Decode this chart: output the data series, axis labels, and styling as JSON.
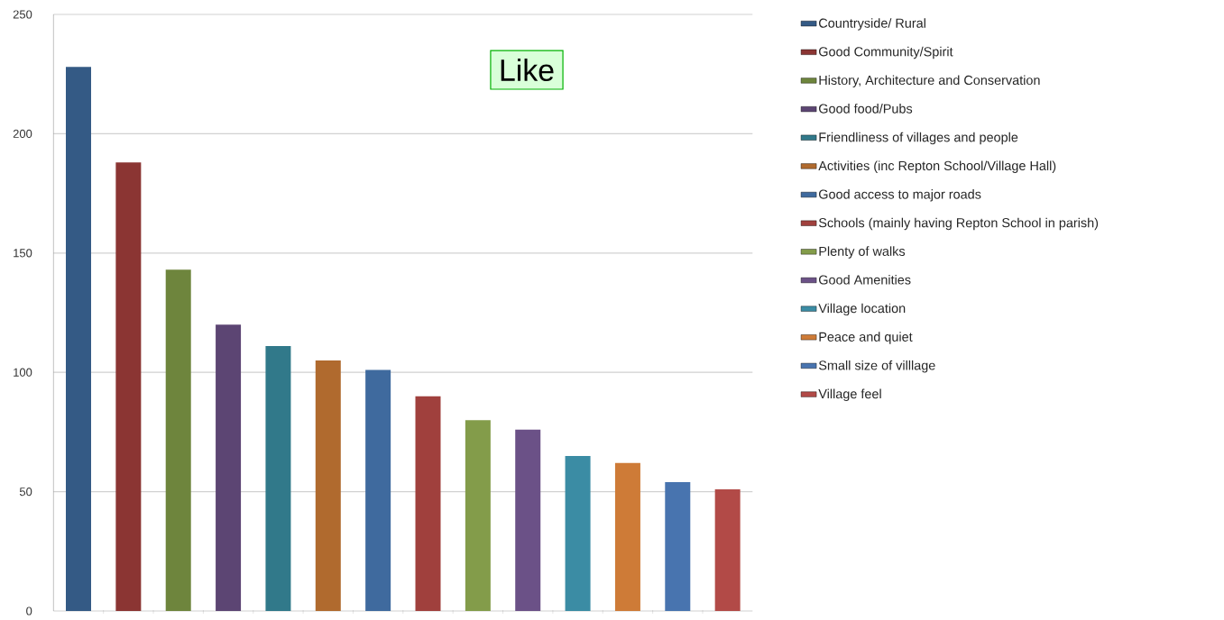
{
  "chart_data": {
    "type": "bar",
    "categories": [
      null,
      null,
      null,
      null,
      null,
      null,
      null,
      null,
      null,
      null,
      null,
      null,
      null,
      null
    ],
    "series": [
      {
        "name": "Countryside/ Rural",
        "color": "#345a85",
        "values": [
          228,
          null,
          null,
          null,
          null,
          null,
          null,
          null,
          null,
          null,
          null,
          null,
          null,
          null
        ]
      },
      {
        "name": "Good Community/Spirit",
        "color": "#8b3533",
        "values": [
          null,
          188,
          null,
          null,
          null,
          null,
          null,
          null,
          null,
          null,
          null,
          null,
          null,
          null
        ]
      },
      {
        "name": "History, Architecture and Conservation",
        "color": "#6e853d",
        "values": [
          null,
          null,
          143,
          null,
          null,
          null,
          null,
          null,
          null,
          null,
          null,
          null,
          null,
          null
        ]
      },
      {
        "name": "Good food/Pubs",
        "color": "#5c4573",
        "values": [
          null,
          null,
          null,
          120,
          null,
          null,
          null,
          null,
          null,
          null,
          null,
          null,
          null,
          null
        ]
      },
      {
        "name": "Friendliness of villages and people",
        "color": "#31798a",
        "values": [
          null,
          null,
          null,
          null,
          111,
          null,
          null,
          null,
          null,
          null,
          null,
          null,
          null,
          null
        ]
      },
      {
        "name": "Activities (inc Repton School/Village Hall)",
        "color": "#b06a2e",
        "values": [
          null,
          null,
          null,
          null,
          null,
          105,
          null,
          null,
          null,
          null,
          null,
          null,
          null,
          null
        ]
      },
      {
        "name": "Good access to major roads",
        "color": "#3f6a9e",
        "values": [
          null,
          null,
          null,
          null,
          null,
          null,
          101,
          null,
          null,
          null,
          null,
          null,
          null,
          null
        ]
      },
      {
        "name": "Schools (mainly having Repton School in parish)",
        "color": "#a0403d",
        "values": [
          null,
          null,
          null,
          null,
          null,
          null,
          null,
          90,
          null,
          null,
          null,
          null,
          null,
          null
        ]
      },
      {
        "name": "Plenty of walks",
        "color": "#839c4a",
        "values": [
          null,
          null,
          null,
          null,
          null,
          null,
          null,
          null,
          80,
          null,
          null,
          null,
          null,
          null
        ]
      },
      {
        "name": "Good Amenities",
        "color": "#6b5187",
        "values": [
          null,
          null,
          null,
          null,
          null,
          null,
          null,
          null,
          null,
          76,
          null,
          null,
          null,
          null
        ]
      },
      {
        "name": "Village location",
        "color": "#3b8ca4",
        "values": [
          null,
          null,
          null,
          null,
          null,
          null,
          null,
          null,
          null,
          null,
          65,
          null,
          null,
          null
        ]
      },
      {
        "name": "Peace and quiet",
        "color": "#ce7b37",
        "values": [
          null,
          null,
          null,
          null,
          null,
          null,
          null,
          null,
          null,
          null,
          null,
          62,
          null,
          null
        ]
      },
      {
        "name": "Small size of villlage",
        "color": "#4874af",
        "values": [
          null,
          null,
          null,
          null,
          null,
          null,
          null,
          null,
          null,
          null,
          null,
          null,
          54,
          null
        ]
      },
      {
        "name": "Village feel",
        "color": "#b24a47",
        "values": [
          null,
          null,
          null,
          null,
          null,
          null,
          null,
          null,
          null,
          null,
          null,
          null,
          null,
          51
        ]
      }
    ],
    "ylim": [
      0,
      250
    ],
    "yticks": [
      0,
      50,
      100,
      150,
      200,
      250
    ],
    "grid": "y",
    "legend": "right",
    "annotations": [
      "Like"
    ]
  }
}
